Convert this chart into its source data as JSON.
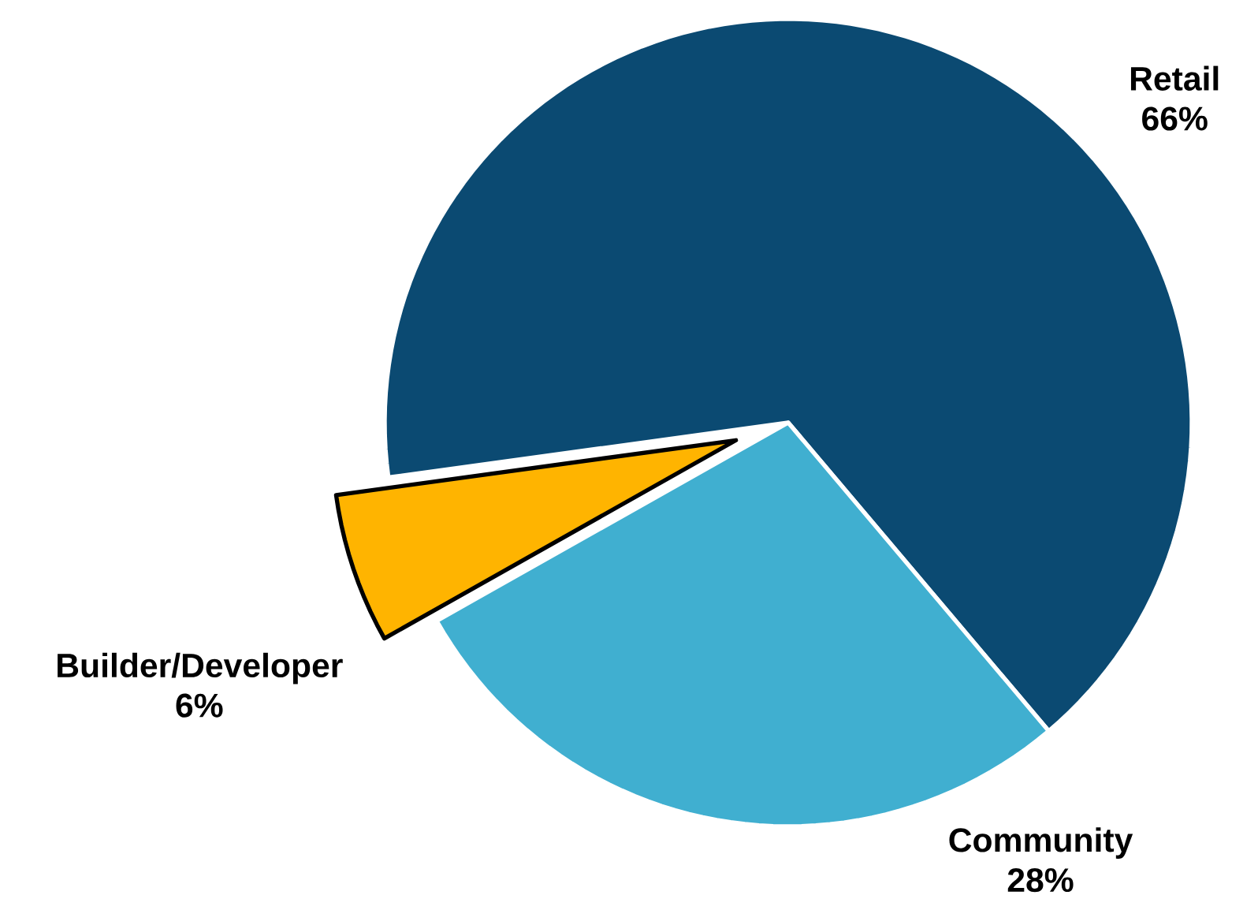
{
  "chart_data": {
    "type": "pie",
    "categories": [
      "Retail",
      "Community",
      "Builder/Developer"
    ],
    "values": [
      66,
      28,
      6
    ],
    "colors": [
      "#0b4a72",
      "#40afd0",
      "#ffb400"
    ],
    "value_labels": [
      "66%",
      "28%",
      "6%"
    ]
  }
}
